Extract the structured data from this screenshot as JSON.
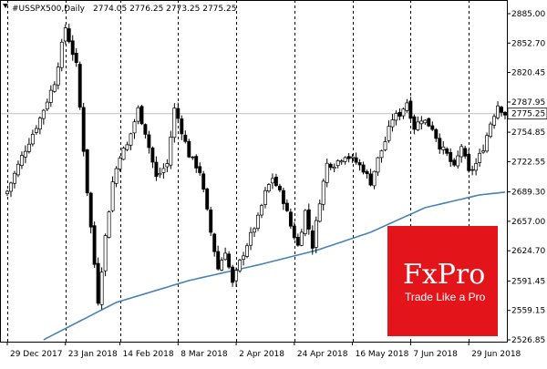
{
  "chart_data": {
    "type": "candlestick",
    "header": {
      "symbol": "#USSPX500,Daily",
      "ohlc": "2774.05 2776.25 2773.25 2775.25"
    },
    "x_labels": [
      "29 Dec 2017",
      "23 Jan 2018",
      "14 Feb 2018",
      "8 Mar 2018",
      "2 Apr 2018",
      "24 Apr 2018",
      "16 May 2018",
      "7 Jun 2018",
      "29 Jun 2018"
    ],
    "x_label_index": [
      0,
      16,
      31,
      47,
      63,
      79,
      95,
      111,
      127
    ],
    "vlines_index": [
      0,
      16,
      31,
      47,
      63,
      79,
      95,
      111,
      127
    ],
    "y_ticks": [
      "2885.00",
      "2852.70",
      "2820.45",
      "2787.95",
      "2754.85",
      "2722.55",
      "2689.30",
      "2657.00",
      "2624.70",
      "2591.45",
      "2559.15",
      "2526.85"
    ],
    "ylim": [
      2526.85,
      2885.0
    ],
    "current_price": 2775.25,
    "current_price_label": "2775.25",
    "n_bars": 138,
    "close_anchors": [
      [
        0,
        2690
      ],
      [
        4,
        2728
      ],
      [
        9,
        2770
      ],
      [
        13,
        2810
      ],
      [
        16,
        2870
      ],
      [
        19,
        2828
      ],
      [
        22,
        2690
      ],
      [
        24,
        2610
      ],
      [
        25,
        2570
      ],
      [
        27,
        2640
      ],
      [
        29,
        2700
      ],
      [
        31,
        2730
      ],
      [
        33,
        2740
      ],
      [
        36,
        2780
      ],
      [
        38,
        2755
      ],
      [
        41,
        2705
      ],
      [
        44,
        2720
      ],
      [
        46,
        2780
      ],
      [
        47,
        2770
      ],
      [
        50,
        2730
      ],
      [
        53,
        2712
      ],
      [
        56,
        2645
      ],
      [
        58,
        2605
      ],
      [
        60,
        2625
      ],
      [
        62,
        2588
      ],
      [
        64,
        2612
      ],
      [
        66,
        2632
      ],
      [
        69,
        2660
      ],
      [
        71,
        2688
      ],
      [
        73,
        2705
      ],
      [
        76,
        2680
      ],
      [
        78,
        2652
      ],
      [
        80,
        2630
      ],
      [
        82,
        2668
      ],
      [
        84,
        2630
      ],
      [
        86,
        2680
      ],
      [
        88,
        2720
      ],
      [
        90,
        2720
      ],
      [
        93,
        2730
      ],
      [
        96,
        2722
      ],
      [
        98,
        2714
      ],
      [
        100,
        2700
      ],
      [
        102,
        2725
      ],
      [
        104,
        2745
      ],
      [
        106,
        2770
      ],
      [
        108,
        2775
      ],
      [
        110,
        2788
      ],
      [
        112,
        2760
      ],
      [
        114,
        2770
      ],
      [
        117,
        2760
      ],
      [
        119,
        2740
      ],
      [
        121,
        2730
      ],
      [
        123,
        2715
      ],
      [
        125,
        2740
      ],
      [
        127,
        2710
      ],
      [
        129,
        2720
      ],
      [
        131,
        2738
      ],
      [
        133,
        2765
      ],
      [
        135,
        2785
      ],
      [
        137,
        2775
      ]
    ],
    "ma_anchors": [
      [
        10,
        2527
      ],
      [
        30,
        2568
      ],
      [
        50,
        2592
      ],
      [
        70,
        2610
      ],
      [
        85,
        2625
      ],
      [
        100,
        2645
      ],
      [
        115,
        2672
      ],
      [
        130,
        2686
      ],
      [
        137,
        2689
      ]
    ],
    "ma_color": "#4682b4",
    "bull_color": "#ffffff",
    "bear_color": "#000000"
  },
  "logo": {
    "brand": "FxPro",
    "tagline": "Trade Like a Pro",
    "color": "#e4141b"
  }
}
